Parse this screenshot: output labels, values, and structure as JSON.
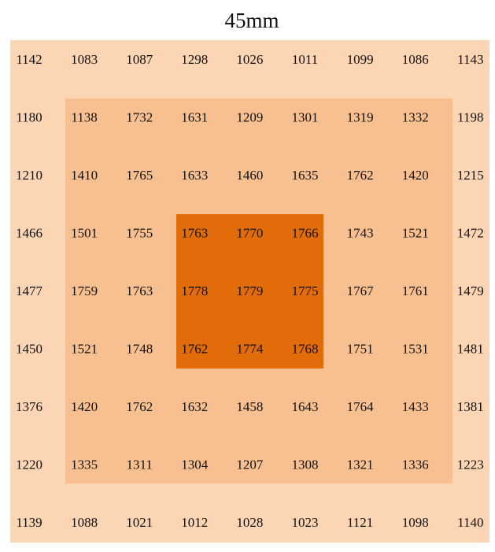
{
  "header": {
    "title": "45mm"
  },
  "table": {
    "rows": [
      [
        1142,
        1083,
        1087,
        1298,
        1026,
        1011,
        1099,
        1086,
        1143
      ],
      [
        1180,
        1138,
        1732,
        1631,
        1209,
        1301,
        1319,
        1332,
        1198
      ],
      [
        1210,
        1410,
        1765,
        1633,
        1460,
        1635,
        1762,
        1420,
        1215
      ],
      [
        1466,
        1501,
        1755,
        1763,
        1770,
        1766,
        1743,
        1521,
        1472
      ],
      [
        1477,
        1759,
        1763,
        1778,
        1779,
        1775,
        1767,
        1761,
        1479
      ],
      [
        1450,
        1521,
        1748,
        1762,
        1774,
        1768,
        1751,
        1531,
        1481
      ],
      [
        1376,
        1420,
        1762,
        1632,
        1458,
        1643,
        1764,
        1433,
        1381
      ],
      [
        1220,
        1335,
        1311,
        1304,
        1207,
        1308,
        1321,
        1336,
        1223
      ],
      [
        1139,
        1088,
        1021,
        1012,
        1028,
        1023,
        1121,
        1098,
        1140
      ]
    ]
  }
}
